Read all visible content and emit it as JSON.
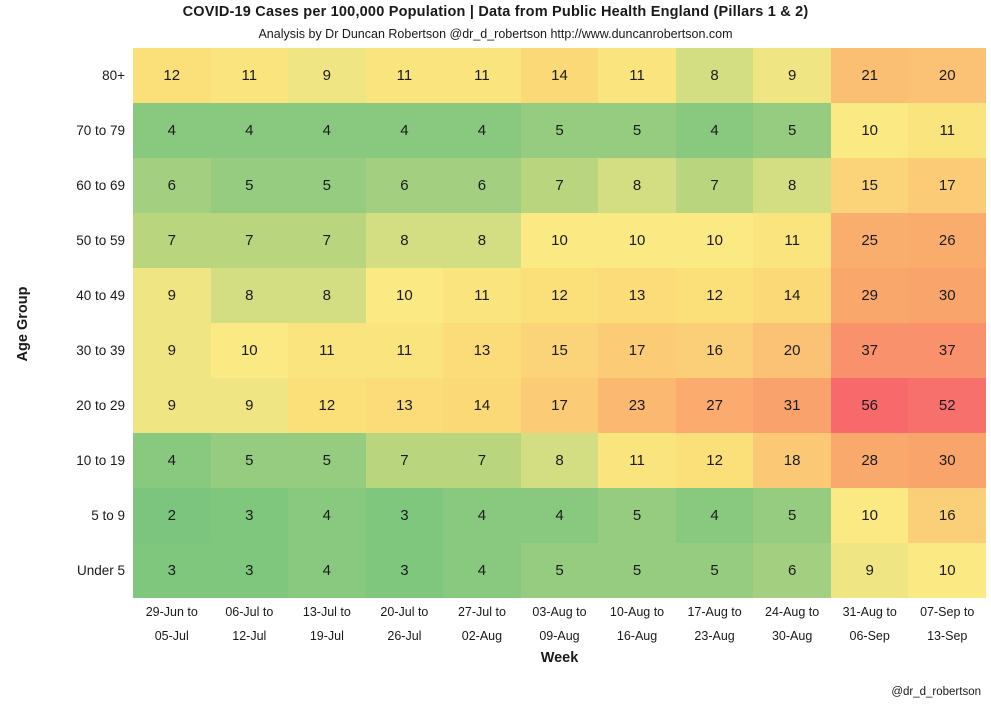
{
  "header": {
    "title": "COVID-19 Cases per 100,000 Population | Data from Public Health England (Pillars 1 & 2)",
    "subtitle": "Analysis by Dr Duncan Robertson @dr_d_robertson http://www.duncanrobertson.com"
  },
  "footer": {
    "credit": "@dr_d_robertson"
  },
  "chart_data": {
    "type": "heatmap",
    "title": "COVID-19 Cases per 100,000 Population | Data from Public Health England (Pillars 1 & 2)",
    "subtitle": "Analysis by Dr Duncan Robertson @dr_d_robertson http://www.duncanrobertson.com",
    "xlabel": "Week",
    "ylabel": "Age Group",
    "legend": "none",
    "grid": "off",
    "rows": [
      "80+",
      "70 to 79",
      "60 to 69",
      "50 to 59",
      "40 to 49",
      "30 to 39",
      "20 to 29",
      "10 to 19",
      "5 to 9",
      "Under 5"
    ],
    "columns": [
      [
        "29-Jun to",
        "05-Jul"
      ],
      [
        "06-Jul to",
        "12-Jul"
      ],
      [
        "13-Jul to",
        "19-Jul"
      ],
      [
        "20-Jul to",
        "26-Jul"
      ],
      [
        "27-Jul to",
        "02-Aug"
      ],
      [
        "03-Aug to",
        "09-Aug"
      ],
      [
        "10-Aug to",
        "16-Aug"
      ],
      [
        "17-Aug to",
        "23-Aug"
      ],
      [
        "24-Aug to",
        "30-Aug"
      ],
      [
        "31-Aug to",
        "06-Sep"
      ],
      [
        "07-Sep to",
        "13-Sep"
      ]
    ],
    "values": [
      [
        12,
        11,
        9,
        11,
        11,
        14,
        11,
        8,
        9,
        21,
        20
      ],
      [
        4,
        4,
        4,
        4,
        4,
        5,
        5,
        4,
        5,
        10,
        11
      ],
      [
        6,
        5,
        5,
        6,
        6,
        7,
        8,
        7,
        8,
        15,
        17
      ],
      [
        7,
        7,
        7,
        8,
        8,
        10,
        10,
        10,
        11,
        25,
        26
      ],
      [
        9,
        8,
        8,
        10,
        11,
        12,
        13,
        12,
        14,
        29,
        30
      ],
      [
        9,
        10,
        11,
        11,
        13,
        15,
        17,
        16,
        20,
        37,
        37
      ],
      [
        9,
        9,
        12,
        13,
        14,
        17,
        23,
        27,
        31,
        56,
        52
      ],
      [
        4,
        5,
        5,
        7,
        7,
        8,
        11,
        12,
        18,
        28,
        30
      ],
      [
        2,
        3,
        4,
        3,
        4,
        4,
        5,
        4,
        5,
        10,
        16
      ],
      [
        3,
        3,
        4,
        3,
        4,
        5,
        5,
        5,
        6,
        9,
        10
      ]
    ],
    "value_range": [
      2,
      56
    ],
    "colormap": {
      "description": "green-yellow-red continuous scale, low=green high=red",
      "anchors": [
        [
          2,
          "#7CC57E"
        ],
        [
          3,
          "#80C77E"
        ],
        [
          4,
          "#89C97F"
        ],
        [
          5,
          "#96CC80"
        ],
        [
          6,
          "#A3CF81"
        ],
        [
          7,
          "#B9D67F"
        ],
        [
          8,
          "#D2DE81"
        ],
        [
          9,
          "#F0E583"
        ],
        [
          10,
          "#FBE983"
        ],
        [
          11,
          "#FAE47D"
        ],
        [
          12,
          "#FBE07A"
        ],
        [
          13,
          "#FBDC79"
        ],
        [
          14,
          "#FCD977"
        ],
        [
          15,
          "#FBD378"
        ],
        [
          17,
          "#FBCB75"
        ],
        [
          20,
          "#FBC276"
        ],
        [
          23,
          "#FAB871"
        ],
        [
          25,
          "#FAAE6E"
        ],
        [
          28,
          "#FAA96C"
        ],
        [
          31,
          "#F9A26B"
        ],
        [
          37,
          "#F9916C"
        ],
        [
          52,
          "#F8706B"
        ],
        [
          56,
          "#F8696B"
        ]
      ]
    }
  }
}
